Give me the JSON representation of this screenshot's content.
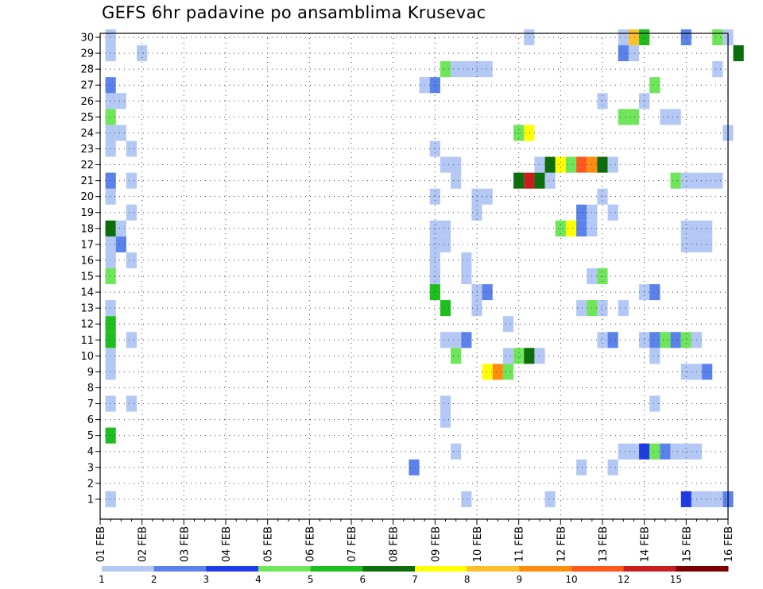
{
  "chart_data": {
    "type": "heatmap",
    "title": "GEFS 6hr padavine po ansamblima Krusevac",
    "x_tick_labels": [
      "01 FEB",
      "02 FEB",
      "03 FEB",
      "04 FEB",
      "05 FEB",
      "06 FEB",
      "07 FEB",
      "08 FEB",
      "09 FEB",
      "10 FEB",
      "11 FEB",
      "12 FEB",
      "13 FEB",
      "14 FEB",
      "15 FEB",
      "16 FEB"
    ],
    "y_tick_labels": [
      "1",
      "2",
      "3",
      "4",
      "5",
      "6",
      "7",
      "8",
      "9",
      "10",
      "11",
      "12",
      "13",
      "14",
      "15",
      "16",
      "17",
      "18",
      "19",
      "20",
      "21",
      "22",
      "23",
      "24",
      "25",
      "26",
      "27",
      "28",
      "29",
      "30"
    ],
    "xlim_days": [
      1,
      16
    ],
    "ylim": [
      0,
      30
    ],
    "grid": "dotted",
    "legend_position": "bottom",
    "color_scale": {
      "bounds": [
        "1",
        "2",
        "3",
        "4",
        "5",
        "6",
        "7",
        "8",
        "9",
        "10",
        "12",
        "15",
        "20"
      ],
      "colors": [
        "#b4c8f5",
        "#5a82ea",
        "#1e3ce6",
        "#6ee659",
        "#1ebe1e",
        "#0b6e0b",
        "#ffff00",
        "#fec028",
        "#fe8c0e",
        "#ff5a1e",
        "#c81e1e",
        "#7a0000"
      ]
    },
    "cells": [
      [
        1,
        1.25,
        0.75
      ],
      [
        1,
        1.25,
        1.25
      ],
      [
        1,
        15,
        3.5
      ],
      [
        1,
        15.25,
        1.5
      ],
      [
        1,
        15.25,
        1.25
      ],
      [
        1,
        11.75,
        0.75
      ],
      [
        1,
        15.5,
        0.5
      ],
      [
        1,
        15.75,
        0.5
      ],
      [
        1,
        16,
        2
      ],
      [
        1,
        9.75,
        0.5
      ],
      [
        3,
        8.5,
        2.5
      ],
      [
        3,
        12.5,
        0.5
      ],
      [
        3,
        13.25,
        0.5
      ],
      [
        4,
        9.5,
        0.5
      ],
      [
        4,
        13.5,
        1.5
      ],
      [
        4,
        13.75,
        1.25
      ],
      [
        4,
        14,
        3.5
      ],
      [
        4,
        14.25,
        4.5
      ],
      [
        4,
        14.5,
        2.5
      ],
      [
        4,
        14.75,
        1.25
      ],
      [
        4,
        15,
        1.5
      ],
      [
        4,
        15.25,
        0.75
      ],
      [
        5,
        1.25,
        5.75
      ],
      [
        6,
        9.25,
        0.5
      ],
      [
        7,
        1.25,
        0.75
      ],
      [
        7,
        1.75,
        0.5
      ],
      [
        7,
        9.25,
        0.5
      ],
      [
        7,
        14.25,
        0.5
      ],
      [
        9,
        1.25,
        1.5
      ],
      [
        9,
        10.25,
        7.5
      ],
      [
        9,
        10.5,
        9.5
      ],
      [
        9,
        10.75,
        4.5
      ],
      [
        9,
        15,
        0.5
      ],
      [
        9,
        15.25,
        0.75
      ],
      [
        9,
        15.5,
        2.5
      ],
      [
        10,
        1.25,
        0.5
      ],
      [
        10,
        9.5,
        4.5
      ],
      [
        10,
        10.75,
        1.5
      ],
      [
        10,
        11,
        4.5
      ],
      [
        10,
        11.25,
        6.5
      ],
      [
        10,
        11.5,
        1.5
      ],
      [
        10,
        14.25,
        0.75
      ],
      [
        11,
        1.25,
        5.5
      ],
      [
        11,
        1.75,
        1.5
      ],
      [
        11,
        9.25,
        1.5
      ],
      [
        11,
        9.5,
        0.5
      ],
      [
        11,
        9.75,
        2.5
      ],
      [
        11,
        13,
        1.5
      ],
      [
        11,
        13.25,
        2.5
      ],
      [
        11,
        14,
        1.5
      ],
      [
        11,
        14.25,
        2.5
      ],
      [
        11,
        14.5,
        4.5
      ],
      [
        11,
        14.75,
        2.5
      ],
      [
        11,
        15,
        4.5
      ],
      [
        11,
        15.25,
        0.75
      ],
      [
        12,
        1.25,
        5.5
      ],
      [
        12,
        10.75,
        0.5
      ],
      [
        13,
        1.25,
        0.75
      ],
      [
        13,
        9.25,
        5.5
      ],
      [
        13,
        10,
        0.5
      ],
      [
        13,
        12.5,
        0.5
      ],
      [
        13,
        12.75,
        4.5
      ],
      [
        13,
        13,
        1.5
      ],
      [
        13,
        13.5,
        0.5
      ],
      [
        14,
        9,
        5.5
      ],
      [
        14,
        10,
        1.5
      ],
      [
        14,
        10.25,
        2.5
      ],
      [
        14,
        14,
        0.5
      ],
      [
        14,
        14.25,
        2.5
      ],
      [
        15,
        1.25,
        4.5
      ],
      [
        15,
        9,
        0.5
      ],
      [
        15,
        9.75,
        0.5
      ],
      [
        15,
        12.75,
        0.5
      ],
      [
        15,
        13,
        4.5
      ],
      [
        16,
        1.25,
        1.5
      ],
      [
        16,
        1.75,
        0.5
      ],
      [
        16,
        9,
        0.5
      ],
      [
        16,
        9.75,
        0.5
      ],
      [
        17,
        1.25,
        0.75
      ],
      [
        17,
        1.5,
        2.5
      ],
      [
        17,
        9,
        0.5
      ],
      [
        17,
        9.25,
        0.5
      ],
      [
        17,
        15,
        0.5
      ],
      [
        17,
        15.25,
        0.5
      ],
      [
        17,
        15.5,
        0.5
      ],
      [
        18,
        1.25,
        6.5
      ],
      [
        18,
        1.5,
        1.5
      ],
      [
        18,
        9,
        0.5
      ],
      [
        18,
        9.25,
        0.5
      ],
      [
        18,
        12,
        4.5
      ],
      [
        18,
        12.25,
        7.5
      ],
      [
        18,
        12.5,
        2.5
      ],
      [
        18,
        12.75,
        1.5
      ],
      [
        18,
        15,
        0.5
      ],
      [
        18,
        15.25,
        0.5
      ],
      [
        18,
        15.5,
        0.5
      ],
      [
        19,
        1.75,
        0.5
      ],
      [
        19,
        10,
        1.5
      ],
      [
        19,
        12.5,
        2.5
      ],
      [
        19,
        12.75,
        1.5
      ],
      [
        19,
        13.25,
        0.5
      ],
      [
        20,
        1.25,
        0.5
      ],
      [
        20,
        9,
        1.5
      ],
      [
        20,
        10,
        1.5
      ],
      [
        20,
        10.25,
        0.5
      ],
      [
        20,
        13,
        0.5
      ],
      [
        21,
        1.25,
        2.5
      ],
      [
        21,
        1.75,
        0.5
      ],
      [
        21,
        9.5,
        0.5
      ],
      [
        21,
        11,
        6.5
      ],
      [
        21,
        11.25,
        12.5
      ],
      [
        21,
        11.5,
        6.5
      ],
      [
        21,
        11.75,
        0.5
      ],
      [
        21,
        14.75,
        4.5
      ],
      [
        21,
        15,
        0.5
      ],
      [
        21,
        15.25,
        0.5
      ],
      [
        21,
        15.5,
        1.5
      ],
      [
        21,
        15.75,
        1.5
      ],
      [
        22,
        9.25,
        1.5
      ],
      [
        22,
        9.5,
        0.5
      ],
      [
        22,
        11.5,
        1.5
      ],
      [
        22,
        11.75,
        6.5
      ],
      [
        22,
        12,
        7.5
      ],
      [
        22,
        12.25,
        4.5
      ],
      [
        22,
        12.5,
        10.5
      ],
      [
        22,
        12.75,
        9.5
      ],
      [
        22,
        13,
        6.5
      ],
      [
        22,
        13.25,
        0.5
      ],
      [
        23,
        1.25,
        1.5
      ],
      [
        23,
        1.75,
        0.5
      ],
      [
        23,
        9,
        0.5
      ],
      [
        24,
        1.25,
        0.5
      ],
      [
        24,
        1.5,
        0.5
      ],
      [
        24,
        11,
        4.5
      ],
      [
        24,
        11.25,
        7.5
      ],
      [
        24,
        16,
        0.5
      ],
      [
        25,
        1.25,
        4.5
      ],
      [
        25,
        13.5,
        4.5
      ],
      [
        25,
        13.75,
        4.5
      ],
      [
        25,
        14.5,
        0.5
      ],
      [
        25,
        14.75,
        0.5
      ],
      [
        26,
        1.25,
        1.5
      ],
      [
        26,
        1.5,
        0.5
      ],
      [
        26,
        13,
        1.5
      ],
      [
        26,
        14,
        0.5
      ],
      [
        27,
        1.25,
        2.5
      ],
      [
        27,
        8.75,
        0.5
      ],
      [
        27,
        9,
        2.5
      ],
      [
        27,
        14.25,
        4.5
      ],
      [
        28,
        9.25,
        4.5
      ],
      [
        28,
        9.5,
        0.5
      ],
      [
        28,
        9.75,
        0.5
      ],
      [
        28,
        10,
        0.5
      ],
      [
        28,
        10.25,
        0.5
      ],
      [
        28,
        15.75,
        1.5
      ],
      [
        29,
        1.25,
        1.5
      ],
      [
        29,
        2,
        0.5
      ],
      [
        29,
        13.5,
        2.5
      ],
      [
        29,
        13.75,
        1.5
      ],
      [
        29,
        16.25,
        6.5
      ],
      [
        30,
        1.25,
        0.5
      ],
      [
        30,
        11.25,
        0.5
      ],
      [
        30,
        13.5,
        0.5
      ],
      [
        30,
        13.75,
        8.5
      ],
      [
        30,
        14,
        5.5
      ],
      [
        30,
        15,
        2.5
      ],
      [
        30,
        15.75,
        4.5
      ],
      [
        30,
        16,
        1.5
      ]
    ]
  }
}
